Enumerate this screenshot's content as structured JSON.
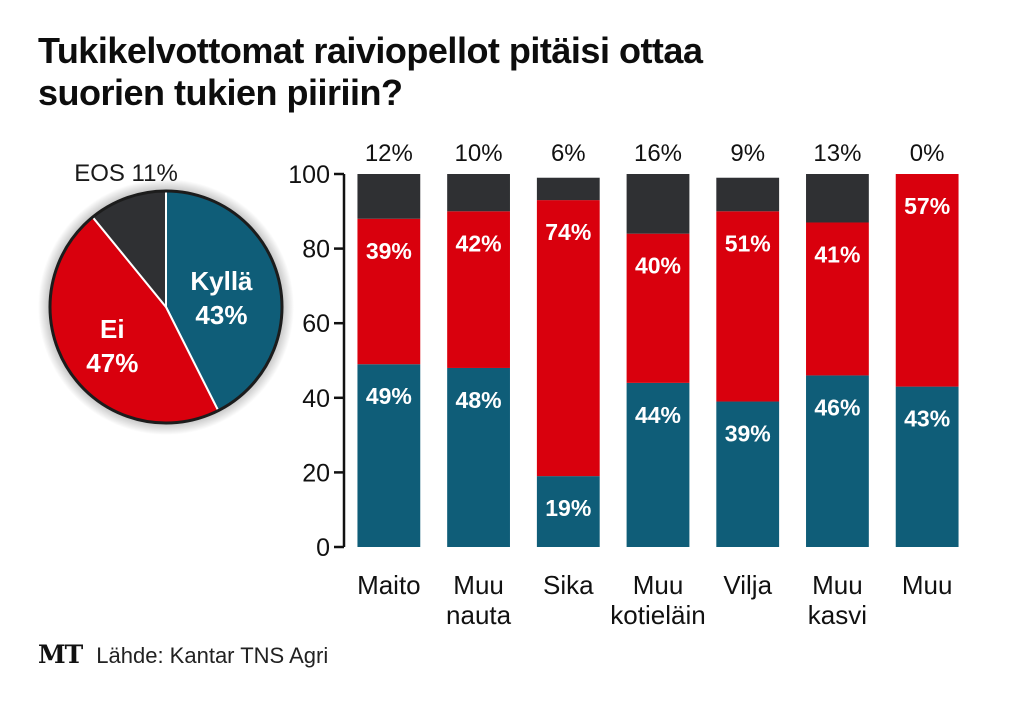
{
  "title_lines": [
    "Tukikelvottomat raiviopellot pitäisi ottaa",
    "suorien tukien piiriin?"
  ],
  "source": {
    "logo": "MT",
    "text": "Lähde: Kantar TNS Agri"
  },
  "colors": {
    "kylla": "#0f5d78",
    "ei": "#d9000d",
    "eos": "#2f3033"
  },
  "chart_data": [
    {
      "type": "pie",
      "slices": [
        {
          "label": "Kyllä",
          "value": 43,
          "value_label": "43%",
          "color": "#0f5d78"
        },
        {
          "label": "Ei",
          "value": 47,
          "value_label": "47%",
          "color": "#d9000d"
        },
        {
          "label": "EOS",
          "value": 11,
          "value_label": "EOS 11%",
          "color": "#2f3033"
        }
      ]
    },
    {
      "type": "bar",
      "stacked": true,
      "categories": [
        [
          "Maito"
        ],
        [
          "Muu",
          "nauta"
        ],
        [
          "Sika"
        ],
        [
          "Muu",
          "kotieläin"
        ],
        [
          "Vilja"
        ],
        [
          "Muu",
          "kasvi"
        ],
        [
          "Muu"
        ]
      ],
      "series": [
        {
          "key": "kylla",
          "values": [
            49,
            48,
            19,
            44,
            39,
            46,
            43
          ],
          "color": "#0f5d78"
        },
        {
          "key": "ei",
          "values": [
            39,
            42,
            74,
            40,
            51,
            41,
            57
          ],
          "color": "#d9000d"
        },
        {
          "key": "eos",
          "values": [
            12,
            10,
            6,
            16,
            9,
            13,
            0
          ],
          "color": "#2f3033"
        }
      ],
      "eos_labels": [
        "12%",
        "10%",
        "6%",
        "16%",
        "9%",
        "13%",
        "0%"
      ],
      "ylim": [
        0,
        100
      ],
      "yticks": [
        0,
        20,
        40,
        60,
        80,
        100
      ],
      "grid": false
    }
  ]
}
